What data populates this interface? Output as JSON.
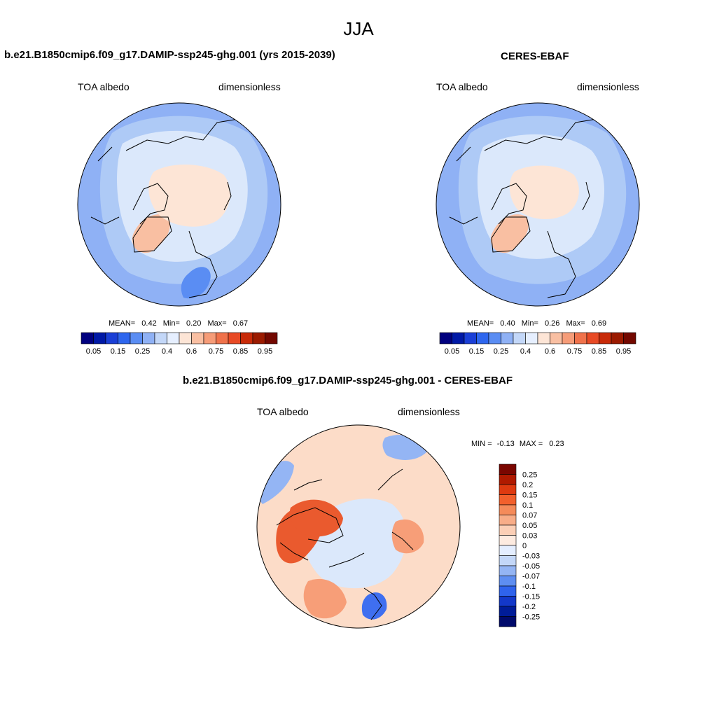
{
  "figure_title": "JJA",
  "panels": [
    {
      "title": "b.e21.B1850cmip6.f09_g17.DAMIP-ssp245-ghg.001 (yrs 2015-2039)",
      "left_label": "TOA albedo",
      "right_label": "dimensionless",
      "stats": {
        "mean_label": "MEAN=",
        "mean": "0.42",
        "min_label": "Min=",
        "min": "0.20",
        "max_label": "Max=",
        "max": "0.67"
      }
    },
    {
      "title": "CERES-EBAF",
      "left_label": "TOA albedo",
      "right_label": "dimensionless",
      "stats": {
        "mean_label": "MEAN=",
        "mean": "0.40",
        "min_label": "Min=",
        "min": "0.26",
        "max_label": "Max=",
        "max": "0.69"
      }
    },
    {
      "title": "b.e21.B1850cmip6.f09_g17.DAMIP-ssp245-ghg.001 - CERES-EBAF",
      "left_label": "TOA albedo",
      "right_label": "dimensionless",
      "stats": {
        "min_label": "MIN =",
        "min": "-0.13",
        "max_label": "MAX =",
        "max": "0.23"
      }
    }
  ],
  "colorbar_abs": {
    "labels": [
      "0.05",
      "0.15",
      "0.25",
      "0.4",
      "0.6",
      "0.75",
      "0.85",
      "0.95"
    ],
    "colors": [
      "#00007f",
      "#0019a6",
      "#1a3fd6",
      "#2e66ee",
      "#5a8df3",
      "#8fb1f5",
      "#c3d7f8",
      "#e6efff",
      "#fde5d6",
      "#f9bfa2",
      "#f69c78",
      "#f0724b",
      "#e84a25",
      "#c82a08",
      "#9b1a00",
      "#730800"
    ]
  },
  "colorbar_diff": {
    "labels": [
      "0.25",
      "0.2",
      "0.15",
      "0.1",
      "0.07",
      "0.05",
      "0.03",
      "0",
      "-0.03",
      "-0.05",
      "-0.07",
      "-0.1",
      "-0.15",
      "-0.2",
      "-0.25"
    ],
    "colors": [
      "#7a0600",
      "#b01a00",
      "#de3a10",
      "#f2602c",
      "#f58b5a",
      "#f8ad88",
      "#fbcfb6",
      "#fdebe0",
      "#e4eeff",
      "#c3d7f8",
      "#94b5f4",
      "#5e8ef1",
      "#2f63ec",
      "#1338c9",
      "#001c98",
      "#000a6b"
    ]
  },
  "map_colors": {
    "ocean_light": "#dbe8fb",
    "ocean_mid": "#aecaf6",
    "ocean_dark": "#8fb1f5",
    "ice": "#fde5d6",
    "ice_warm": "#f9bfa2",
    "diff_pos_light": "#fcdcc8",
    "diff_pos_mid": "#f79e78",
    "diff_pos_strong": "#ea5a2e",
    "diff_neg_light": "#dbe8fb",
    "diff_neg_mid": "#94b5f4",
    "diff_neg_strong": "#3f6ff0"
  }
}
